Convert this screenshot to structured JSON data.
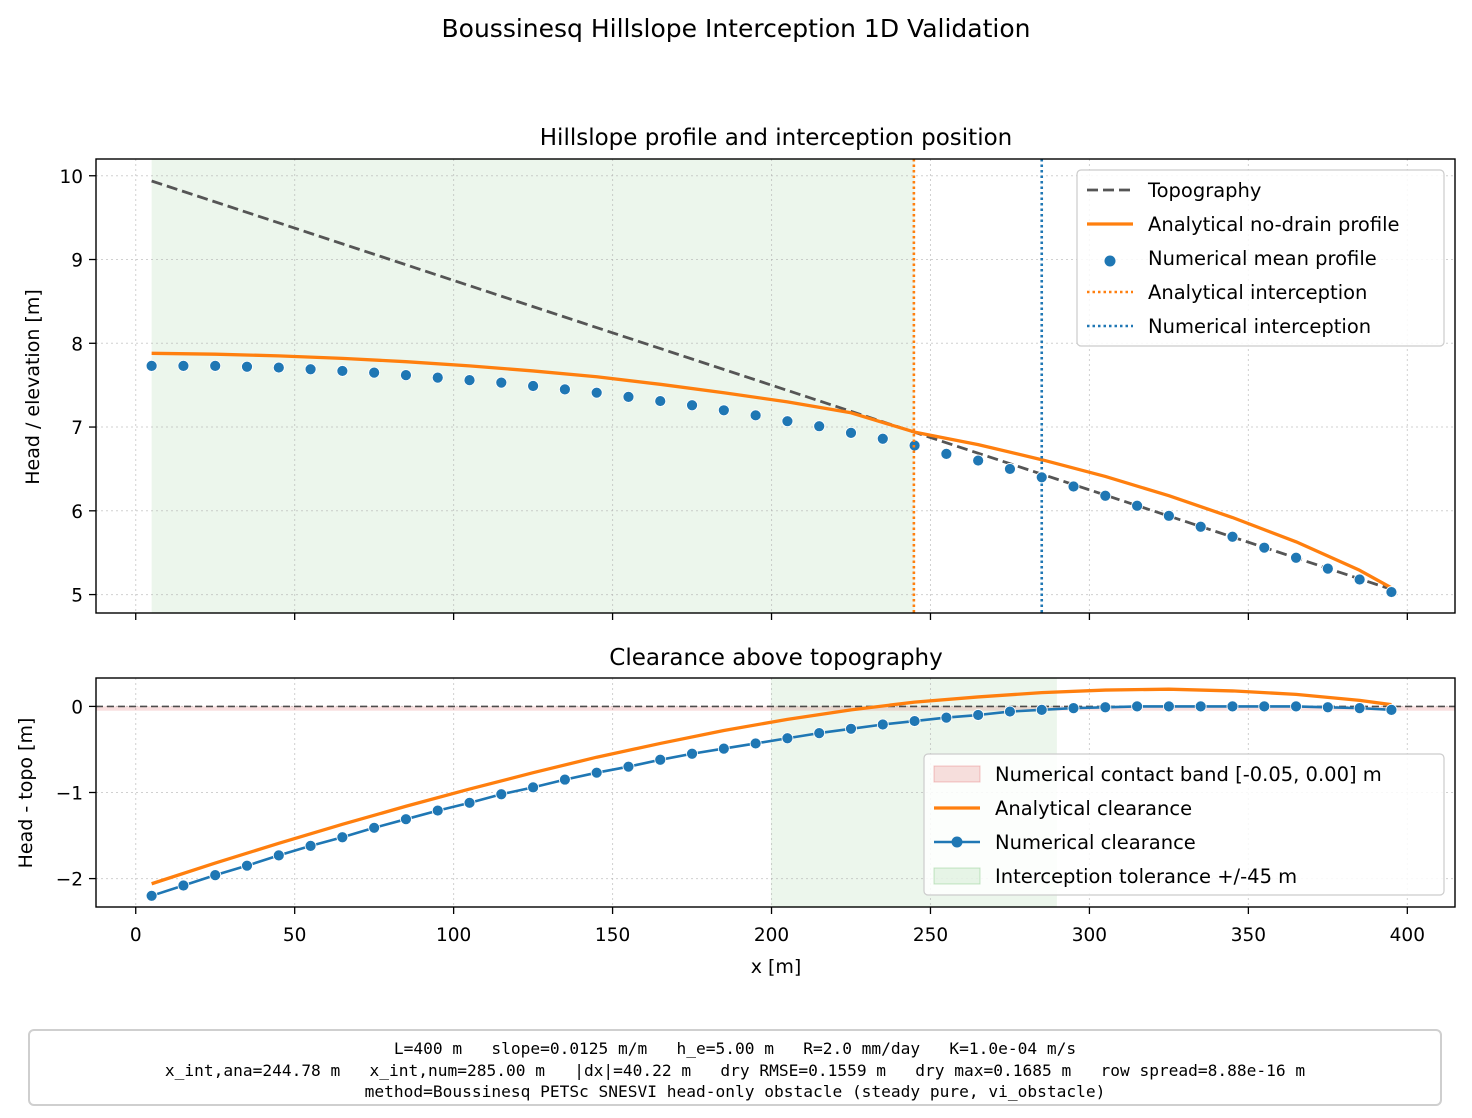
{
  "figure": {
    "title": "Boussinesq Hillslope Interception 1D Validation"
  },
  "chart_data": [
    {
      "type": "line",
      "title": "Hillslope profile and interception position",
      "xlabel": "",
      "ylabel": "Head / elevation [m]",
      "xlim": [
        -12.5,
        415
      ],
      "ylim": [
        4.78,
        10.2
      ],
      "xticks": [
        0,
        50,
        100,
        150,
        200,
        250,
        300,
        350,
        400
      ],
      "yticks": [
        5,
        6,
        7,
        8,
        9,
        10
      ],
      "grid": true,
      "legend": "top-right",
      "shaded_band": {
        "x": [
          5,
          245
        ],
        "color": "#2ca02c"
      },
      "series": [
        {
          "name": "Topography",
          "style": "dashed",
          "color": "#555555",
          "x": [
            5,
            395
          ],
          "values": [
            9.9375,
            5.0625
          ]
        },
        {
          "name": "Analytical no-drain profile",
          "style": "solid",
          "color": "#ff7f0e",
          "x": [
            5,
            25,
            45,
            65,
            85,
            105,
            125,
            145,
            165,
            185,
            205,
            225,
            245,
            265,
            285,
            305,
            325,
            345,
            365,
            385,
            395
          ],
          "values": [
            7.88,
            7.87,
            7.85,
            7.82,
            7.78,
            7.73,
            7.67,
            7.6,
            7.51,
            7.41,
            7.3,
            7.17,
            6.94,
            6.79,
            6.61,
            6.41,
            6.18,
            5.92,
            5.63,
            5.29,
            5.08
          ]
        },
        {
          "name": "Numerical mean profile",
          "style": "markers",
          "color": "#1f77b4",
          "x": [
            5,
            15,
            25,
            35,
            45,
            55,
            65,
            75,
            85,
            95,
            105,
            115,
            125,
            135,
            145,
            155,
            165,
            175,
            185,
            195,
            205,
            215,
            225,
            235,
            245,
            255,
            265,
            275,
            285,
            295,
            305,
            315,
            325,
            335,
            345,
            355,
            365,
            375,
            385,
            395
          ],
          "values": [
            7.73,
            7.73,
            7.73,
            7.72,
            7.71,
            7.69,
            7.67,
            7.65,
            7.62,
            7.59,
            7.56,
            7.53,
            7.49,
            7.45,
            7.41,
            7.36,
            7.31,
            7.26,
            7.2,
            7.14,
            7.07,
            7.01,
            6.93,
            6.86,
            6.78,
            6.68,
            6.6,
            6.5,
            6.4,
            6.29,
            6.18,
            6.06,
            5.94,
            5.81,
            5.69,
            5.56,
            5.44,
            5.31,
            5.18,
            5.03
          ]
        },
        {
          "name": "Analytical interception",
          "style": "dotted-vline",
          "color": "#ff7f0e",
          "x": [
            244.78
          ]
        },
        {
          "name": "Numerical interception",
          "style": "dotted-vline",
          "color": "#1f77b4",
          "x": [
            285.0
          ]
        }
      ]
    },
    {
      "type": "line",
      "title": "Clearance above topography",
      "xlabel": "x [m]",
      "ylabel": "Head - topo [m]",
      "xlim": [
        -12.5,
        415
      ],
      "ylim": [
        -2.33,
        0.33
      ],
      "xticks": [
        0,
        50,
        100,
        150,
        200,
        250,
        300,
        350,
        400
      ],
      "yticks": [
        0,
        -1,
        -2
      ],
      "ytick_labels": [
        "0",
        "−1",
        "−2"
      ],
      "grid": true,
      "legend": "lower-right",
      "zero_line": 0,
      "series": [
        {
          "name": "Numerical contact band [-0.05, 0.00] m",
          "style": "band-y",
          "color": "#d62728",
          "y": [
            -0.05,
            0.0
          ]
        },
        {
          "name": "Analytical clearance",
          "style": "solid",
          "color": "#ff7f0e",
          "x": [
            5,
            25,
            45,
            65,
            85,
            105,
            125,
            145,
            165,
            185,
            205,
            225,
            245,
            265,
            285,
            305,
            325,
            345,
            365,
            385,
            395
          ],
          "values": [
            -2.06,
            -1.82,
            -1.59,
            -1.37,
            -1.16,
            -0.96,
            -0.77,
            -0.59,
            -0.43,
            -0.28,
            -0.15,
            -0.04,
            0.05,
            0.11,
            0.16,
            0.19,
            0.2,
            0.18,
            0.14,
            0.07,
            0.02
          ]
        },
        {
          "name": "Numerical clearance",
          "style": "line-markers",
          "color": "#1f77b4",
          "x": [
            5,
            15,
            25,
            35,
            45,
            55,
            65,
            75,
            85,
            95,
            105,
            115,
            125,
            135,
            145,
            155,
            165,
            175,
            185,
            195,
            205,
            215,
            225,
            235,
            245,
            255,
            265,
            275,
            285,
            295,
            305,
            315,
            325,
            335,
            345,
            355,
            365,
            375,
            385,
            395
          ],
          "values": [
            -2.2,
            -2.08,
            -1.96,
            -1.85,
            -1.73,
            -1.62,
            -1.52,
            -1.41,
            -1.31,
            -1.21,
            -1.12,
            -1.02,
            -0.94,
            -0.85,
            -0.77,
            -0.7,
            -0.62,
            -0.55,
            -0.49,
            -0.43,
            -0.37,
            -0.31,
            -0.26,
            -0.21,
            -0.17,
            -0.13,
            -0.1,
            -0.06,
            -0.04,
            -0.02,
            -0.01,
            0.0,
            0.0,
            0.0,
            0.0,
            0.0,
            0.0,
            -0.01,
            -0.02,
            -0.04
          ]
        },
        {
          "name": "Interception tolerance +/-45 m",
          "style": "band-x",
          "color": "#2ca02c",
          "x": [
            199.78,
            289.78
          ]
        }
      ]
    }
  ],
  "summary": {
    "line1": "L=400 m   slope=0.0125 m/m   h_e=5.00 m   R=2.0 mm/day   K=1.0e-04 m/s",
    "line2": "x_int,ana=244.78 m   x_int,num=285.00 m   |dx|=40.22 m   dry RMSE=0.1559 m   dry max=0.1685 m   row spread=8.88e-16 m",
    "line3": "method=Boussinesq PETSc SNESVI head-only obstacle (steady pure, vi_obstacle)"
  }
}
